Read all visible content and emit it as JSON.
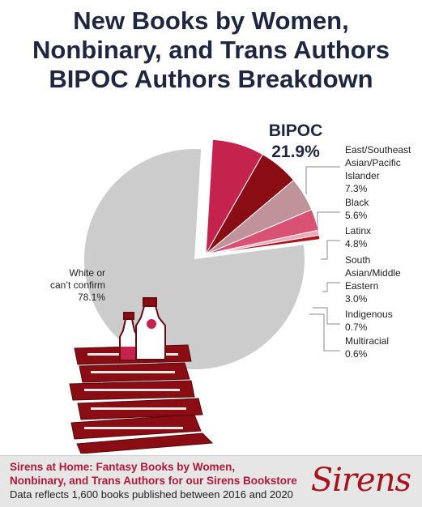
{
  "title": {
    "lines": [
      "New Books by Women,",
      "Nonbinary, and Trans Authors",
      "BIPOC Authors Breakdown"
    ]
  },
  "colors": {
    "title": "#1f2740",
    "white": "#cccccc",
    "bipoc": [
      "#c4234d",
      "#8a0d14",
      "#bf9399",
      "#d95274",
      "#f0a8b8",
      "#b0121e"
    ],
    "footer_accent": "#b01a3a"
  },
  "chart_data": {
    "type": "pie",
    "title": "New Books by Women, Nonbinary, and Trans Authors BIPOC Authors Breakdown",
    "slices": [
      {
        "label": "White or can't confirm",
        "value": 78.1,
        "display": "78.1%"
      },
      {
        "label": "East/Southeast Asian/Pacific Islander",
        "value": 7.3,
        "display": "7.3%"
      },
      {
        "label": "Black",
        "value": 5.6,
        "display": "5.6%"
      },
      {
        "label": "Latinx",
        "value": 4.8,
        "display": "4.8%"
      },
      {
        "label": "South Asian/Middle Eastern",
        "value": 3.0,
        "display": "3.0%"
      },
      {
        "label": "Indigenous",
        "value": 0.7,
        "display": "0.7%"
      },
      {
        "label": "Multiracial",
        "value": 0.6,
        "display": "0.6%"
      }
    ],
    "group": {
      "label": "BIPOC",
      "value": 21.9,
      "display": "21.9%"
    }
  },
  "footer": {
    "line1": "Sirens at Home: Fantasy Books by Women,",
    "line2": "Nonbinary, and Trans Authors for our Sirens Bookstore",
    "note": "Data reflects 1,600 books published between 2016 and 2020",
    "logo": "Sirens"
  }
}
